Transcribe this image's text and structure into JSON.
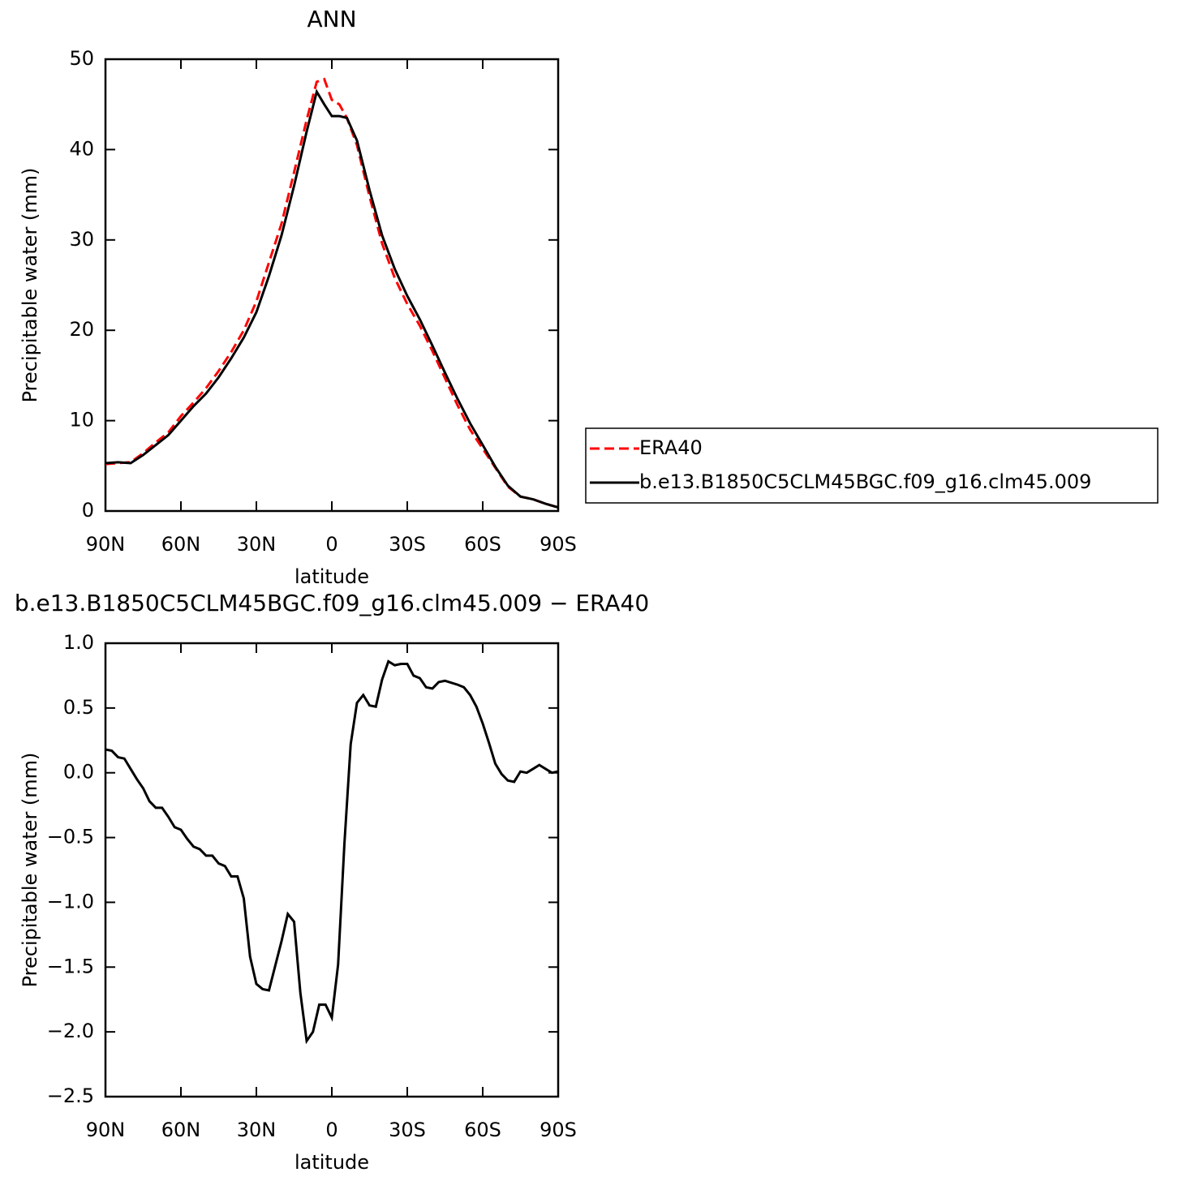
{
  "chart_data": [
    {
      "type": "line",
      "title": "ANN",
      "xlabel": "latitude",
      "ylabel": "Precipitable water (mm)",
      "x": [
        90,
        85,
        80,
        75,
        70,
        65,
        60,
        55,
        50,
        45,
        40,
        35,
        30,
        25,
        20,
        15,
        10,
        6,
        3,
        0,
        -3,
        -6,
        -10,
        -15,
        -20,
        -25,
        -30,
        -35,
        -40,
        -45,
        -50,
        -55,
        -60,
        -65,
        -70,
        -75,
        -80,
        -85,
        -90
      ],
      "series": [
        {
          "name": "ERA40",
          "color": "#ff0000",
          "line_style": "dashed",
          "values": [
            5.2,
            5.3,
            5.4,
            6.4,
            7.6,
            8.7,
            10.5,
            12.0,
            13.6,
            15.5,
            17.6,
            20.0,
            23.2,
            27.5,
            31.8,
            37.5,
            43.3,
            47.5,
            47.8,
            45.5,
            45.0,
            43.5,
            40.5,
            34.8,
            29.6,
            25.8,
            22.9,
            20.5,
            17.7,
            14.7,
            11.7,
            9.0,
            6.9,
            4.8,
            2.7,
            1.6,
            1.3,
            0.8,
            0.4
          ]
        },
        {
          "name": "b.e13.B1850C5CLM45BGC.f09_g16.clm45.009",
          "color": "#000000",
          "line_style": "solid",
          "values": [
            5.3,
            5.4,
            5.3,
            6.2,
            7.3,
            8.4,
            10.0,
            11.6,
            13.0,
            14.8,
            16.9,
            19.2,
            22.0,
            26.0,
            30.5,
            36.0,
            42.0,
            46.4,
            45.0,
            43.7,
            43.7,
            43.5,
            41.0,
            35.5,
            30.5,
            26.8,
            23.8,
            21.2,
            18.3,
            15.3,
            12.4,
            9.7,
            7.3,
            4.9,
            2.8,
            1.6,
            1.3,
            0.8,
            0.4
          ]
        }
      ],
      "xlim": [
        90,
        -90
      ],
      "xticks": [
        {
          "value": 90,
          "label": "90N"
        },
        {
          "value": 60,
          "label": "60N"
        },
        {
          "value": 30,
          "label": "30N"
        },
        0,
        {
          "value": -30,
          "label": "30S"
        },
        {
          "value": -60,
          "label": "60S"
        },
        {
          "value": -90,
          "label": "90S"
        }
      ],
      "ylim": [
        0,
        50
      ],
      "yticks": [
        0,
        10,
        20,
        30,
        40,
        50
      ],
      "legend": "right"
    },
    {
      "type": "line",
      "title": "b.e13.B1850C5CLM45BGC.f09_g16.clm45.009 − ERA40",
      "xlabel": "latitude",
      "ylabel": "Precipitable water (mm)",
      "x": [
        90,
        87.5,
        85,
        82.5,
        80,
        77.5,
        75,
        72.5,
        70,
        67.5,
        65,
        62.5,
        60,
        57.5,
        55,
        52.5,
        50,
        47.5,
        45,
        42.5,
        40,
        37.5,
        35,
        32.5,
        30,
        27.5,
        25,
        20,
        17.5,
        15,
        12.5,
        10,
        7.5,
        5,
        2.5,
        0,
        -2.5,
        -5,
        -7.5,
        -10,
        -12.5,
        -15,
        -17.5,
        -20,
        -22.5,
        -25,
        -27.5,
        -30,
        -32.5,
        -35,
        -37.5,
        -40,
        -42.5,
        -45,
        -50,
        -52.5,
        -55,
        -57.5,
        -60,
        -62.5,
        -65,
        -67.5,
        -70,
        -72.5,
        -75,
        -77.5,
        -80,
        -82.5,
        -85,
        -87.5,
        -90
      ],
      "series": [
        {
          "color": "#000000",
          "line_style": "solid",
          "values": [
            0.18,
            0.17,
            0.12,
            0.11,
            0.03,
            -0.05,
            -0.12,
            -0.22,
            -0.27,
            -0.27,
            -0.34,
            -0.42,
            -0.44,
            -0.51,
            -0.57,
            -0.59,
            -0.64,
            -0.64,
            -0.7,
            -0.72,
            -0.8,
            -0.8,
            -0.97,
            -1.42,
            -1.63,
            -1.67,
            -1.68,
            -1.3,
            -1.09,
            -1.15,
            -1.7,
            -2.07,
            -2.0,
            -1.79,
            -1.79,
            -1.89,
            -1.48,
            -0.55,
            0.22,
            0.54,
            0.6,
            0.52,
            0.51,
            0.72,
            0.86,
            0.83,
            0.84,
            0.84,
            0.75,
            0.73,
            0.66,
            0.65,
            0.7,
            0.71,
            0.68,
            0.66,
            0.6,
            0.51,
            0.38,
            0.23,
            0.07,
            -0.01,
            -0.06,
            -0.07,
            0.01,
            0.0,
            0.03,
            0.06,
            0.03,
            0.0,
            0.01
          ]
        }
      ],
      "xlim": [
        90,
        -90
      ],
      "xticks": [
        {
          "value": 90,
          "label": "90N"
        },
        {
          "value": 60,
          "label": "60N"
        },
        {
          "value": 30,
          "label": "30N"
        },
        0,
        {
          "value": -30,
          "label": "30S"
        },
        {
          "value": -60,
          "label": "60S"
        },
        {
          "value": -90,
          "label": "90S"
        }
      ],
      "ylim": [
        -2.5,
        1.0
      ],
      "yticks": [
        {
          "value": -2.5,
          "label": "−2.5"
        },
        {
          "value": -2.0,
          "label": "−2.0"
        },
        {
          "value": -1.5,
          "label": "−1.5"
        },
        {
          "value": -1.0,
          "label": "−1.0"
        },
        {
          "value": -0.5,
          "label": "−0.5"
        },
        {
          "value": 0,
          "label": "0.0"
        },
        {
          "value": 0.5,
          "label": "0.5"
        },
        {
          "value": 1.0,
          "label": "1.0"
        }
      ]
    }
  ]
}
